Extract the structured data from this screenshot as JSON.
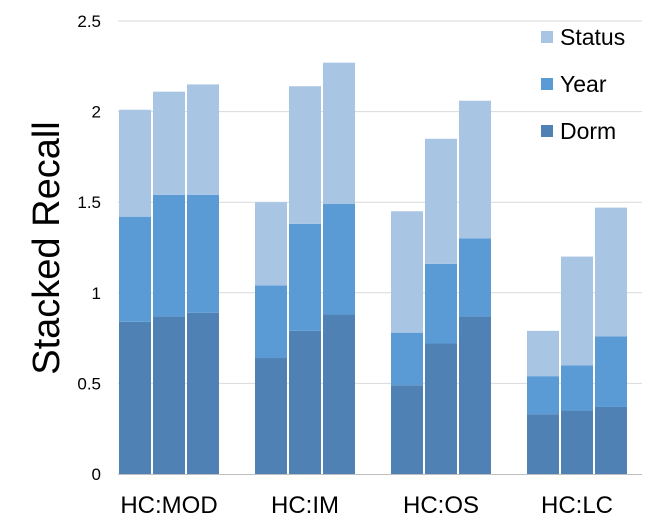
{
  "chart_data": {
    "type": "bar",
    "stacked": true,
    "title": "",
    "xlabel": "",
    "ylabel": "Stacked Recall",
    "ylim": [
      0,
      2.5
    ],
    "yticks": [
      0,
      0.5,
      1,
      1.5,
      2,
      2.5
    ],
    "ytick_labels": [
      "0",
      "0.5",
      "1",
      "1.5",
      "2",
      "2.5"
    ],
    "grid": true,
    "legend_position": "top-right",
    "categories": [
      "HC:MOD",
      "HC:IM",
      "HC:OS",
      "HC:LC"
    ],
    "bars_per_category": 3,
    "series": [
      {
        "name": "Dorm",
        "color": "#4f81b4",
        "values": [
          [
            0.84,
            0.87,
            0.89
          ],
          [
            0.64,
            0.79,
            0.88
          ],
          [
            0.49,
            0.72,
            0.87
          ],
          [
            0.33,
            0.35,
            0.37
          ]
        ]
      },
      {
        "name": "Year",
        "color": "#5b9bd5",
        "values": [
          [
            0.58,
            0.67,
            0.65
          ],
          [
            0.4,
            0.59,
            0.61
          ],
          [
            0.29,
            0.44,
            0.43
          ],
          [
            0.21,
            0.25,
            0.39
          ]
        ]
      },
      {
        "name": "Status",
        "color": "#a9c5e4",
        "values": [
          [
            0.59,
            0.57,
            0.61
          ],
          [
            0.46,
            0.76,
            0.78
          ],
          [
            0.67,
            0.69,
            0.76
          ],
          [
            0.25,
            0.6,
            0.71
          ]
        ]
      }
    ],
    "legend_order": [
      "Status",
      "Year",
      "Dorm"
    ]
  }
}
